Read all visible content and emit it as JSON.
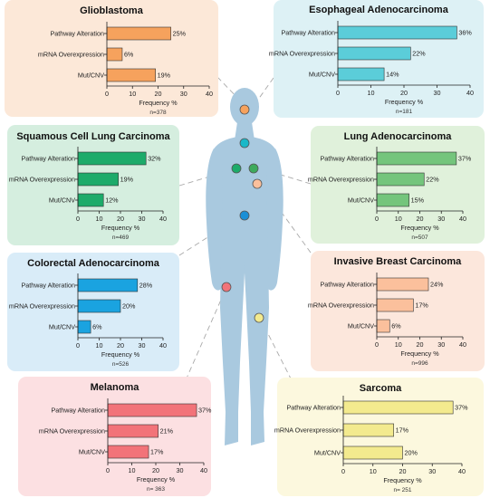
{
  "chart_data": [
    {
      "id": "glioblastoma",
      "type": "bar",
      "orientation": "horizontal",
      "title": "Glioblastoma",
      "categories": [
        "Pathway Alteration",
        "mRNA Overexpression",
        "Mut/CNV"
      ],
      "values": [
        25,
        6,
        19
      ],
      "value_labels": [
        "25%",
        "6%",
        "19%"
      ],
      "xlabel": "Frequency %",
      "xlim": [
        0,
        40
      ],
      "xticks": [
        "0",
        "10",
        "20",
        "30",
        "40"
      ],
      "n_label": "n=378",
      "bar_color": "#F6A25D",
      "panel_color": "#FCE8D8"
    },
    {
      "id": "esophageal",
      "type": "bar",
      "orientation": "horizontal",
      "title": "Esophageal Adenocarcinoma",
      "categories": [
        "Pathway Alteration",
        "mRNA Overexpression",
        "Mut/CNV"
      ],
      "values": [
        36,
        22,
        14
      ],
      "value_labels": [
        "36%",
        "22%",
        "14%"
      ],
      "xlabel": "Frequency %",
      "xlim": [
        0,
        40
      ],
      "xticks": [
        "0",
        "10",
        "20",
        "30",
        "40"
      ],
      "n_label": "n=181",
      "bar_color": "#5BCDD9",
      "panel_color": "#DDF1F5"
    },
    {
      "id": "squamous",
      "type": "bar",
      "orientation": "horizontal",
      "title": "Squamous Cell Lung Carcinoma",
      "categories": [
        "Pathway Alteration",
        "mRNA Overexpression",
        "Mut/CNV"
      ],
      "values": [
        32,
        19,
        12
      ],
      "value_labels": [
        "32%",
        "19%",
        "12%"
      ],
      "xlabel": "Frequency %",
      "xlim": [
        0,
        40
      ],
      "xticks": [
        "0",
        "10",
        "20",
        "30",
        "40"
      ],
      "n_label": "n=469",
      "bar_color": "#1DAB6A",
      "panel_color": "#D5EEDF"
    },
    {
      "id": "lung_adeno",
      "type": "bar",
      "orientation": "horizontal",
      "title": "Lung Adenocarcinoma",
      "categories": [
        "Pathway Alteration",
        "mRNA Overexpression",
        "Mut/CNV"
      ],
      "values": [
        37,
        22,
        15
      ],
      "value_labels": [
        "37%",
        "22%",
        "15%"
      ],
      "xlabel": "Frequency %",
      "xlim": [
        0,
        40
      ],
      "xticks": [
        "0",
        "10",
        "20",
        "30",
        "40"
      ],
      "n_label": "n=507",
      "bar_color": "#74C57C",
      "panel_color": "#E0F1DB"
    },
    {
      "id": "colorectal",
      "type": "bar",
      "orientation": "horizontal",
      "title": "Colorectal Adenocarcinoma",
      "categories": [
        "Pathway Alteration",
        "mRNA Overexpression",
        "Mut/CNV"
      ],
      "values": [
        28,
        20,
        6
      ],
      "value_labels": [
        "28%",
        "20%",
        "6%"
      ],
      "xlabel": "Frequency %",
      "xlim": [
        0,
        40
      ],
      "xticks": [
        "0",
        "10",
        "20",
        "30",
        "40"
      ],
      "n_label": "n=526",
      "bar_color": "#1AA3E0",
      "panel_color": "#D9ECF8"
    },
    {
      "id": "breast",
      "type": "bar",
      "orientation": "horizontal",
      "title": "Invasive Breast Carcinoma",
      "categories": [
        "Pathway Alteration",
        "mRNA Overexpression",
        "Mut/CNV"
      ],
      "values": [
        24,
        17,
        6
      ],
      "value_labels": [
        "24%",
        "17%",
        "6%"
      ],
      "xlabel": "Frequency %",
      "xlim": [
        0,
        40
      ],
      "xticks": [
        "0",
        "10",
        "20",
        "30",
        "40"
      ],
      "n_label": "n=996",
      "bar_color": "#FBC09C",
      "panel_color": "#FCE7DC"
    },
    {
      "id": "melanoma",
      "type": "bar",
      "orientation": "horizontal",
      "title": "Melanoma",
      "categories": [
        "Pathway Alteration",
        "mRNA Overexpression",
        "Mut/CNV"
      ],
      "values": [
        37,
        21,
        17
      ],
      "value_labels": [
        "37%",
        "21%",
        "17%"
      ],
      "xlabel": "Frequency %",
      "xlim": [
        0,
        40
      ],
      "xticks": [
        "0",
        "10",
        "20",
        "30",
        "40"
      ],
      "n_label": "n= 363",
      "bar_color": "#F27379",
      "panel_color": "#FCE0E2"
    },
    {
      "id": "sarcoma",
      "type": "bar",
      "orientation": "horizontal",
      "title": "Sarcoma",
      "categories": [
        "Pathway Alteration",
        "mRNA Overexpression",
        "Mut/CNV"
      ],
      "values": [
        37,
        17,
        20
      ],
      "value_labels": [
        "37%",
        "17%",
        "20%"
      ],
      "xlabel": "Frequency %",
      "xlim": [
        0,
        40
      ],
      "xticks": [
        "0",
        "10",
        "20",
        "30",
        "40"
      ],
      "n_label": "n= 251",
      "bar_color": "#F3EA8E",
      "panel_color": "#FCF8DE"
    }
  ],
  "colors": {
    "body": "#A9C9DF",
    "connector": "#A9A9A9",
    "axis": "#222222",
    "bar_outline": "#333333"
  }
}
